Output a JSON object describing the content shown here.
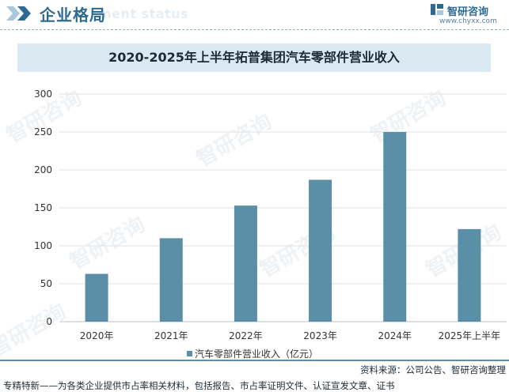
{
  "header": {
    "title": "企业格局",
    "ghost_text": "ment status",
    "brand_name": "智研咨询",
    "brand_url": "www.chyxx.com"
  },
  "chart_title": "2020-2025年上半年拓普集团汽车零部件营业收入",
  "chart_data": {
    "type": "bar",
    "title": "2020-2025年上半年拓普集团汽车零部件营业收入",
    "categories": [
      "2020年",
      "2021年",
      "2022年",
      "2023年",
      "2024年",
      "2025年上半年"
    ],
    "series": [
      {
        "name": "汽车零部件营业收入（亿元）",
        "values": [
          63,
          110,
          153,
          187,
          250,
          122
        ]
      }
    ],
    "ylim": [
      0,
      300
    ],
    "yticks": [
      "0",
      "50",
      "100",
      "150",
      "200",
      "250",
      "300"
    ],
    "xlabel": "",
    "ylabel": "",
    "grid": "horizontal",
    "legend": "bottom-center",
    "colors": {
      "bar": "#5b8fa7",
      "grid": "#e2e2e2",
      "accent": "#2d6a92"
    }
  },
  "footer": {
    "source": "资料来源：公司公告、智研咨询整理",
    "note": "专精特新——为各类企业提供市占率相关材料，包括报告、市占率证明文件、认证宣发文章、证书"
  },
  "watermark": {
    "text": "智研咨询"
  }
}
